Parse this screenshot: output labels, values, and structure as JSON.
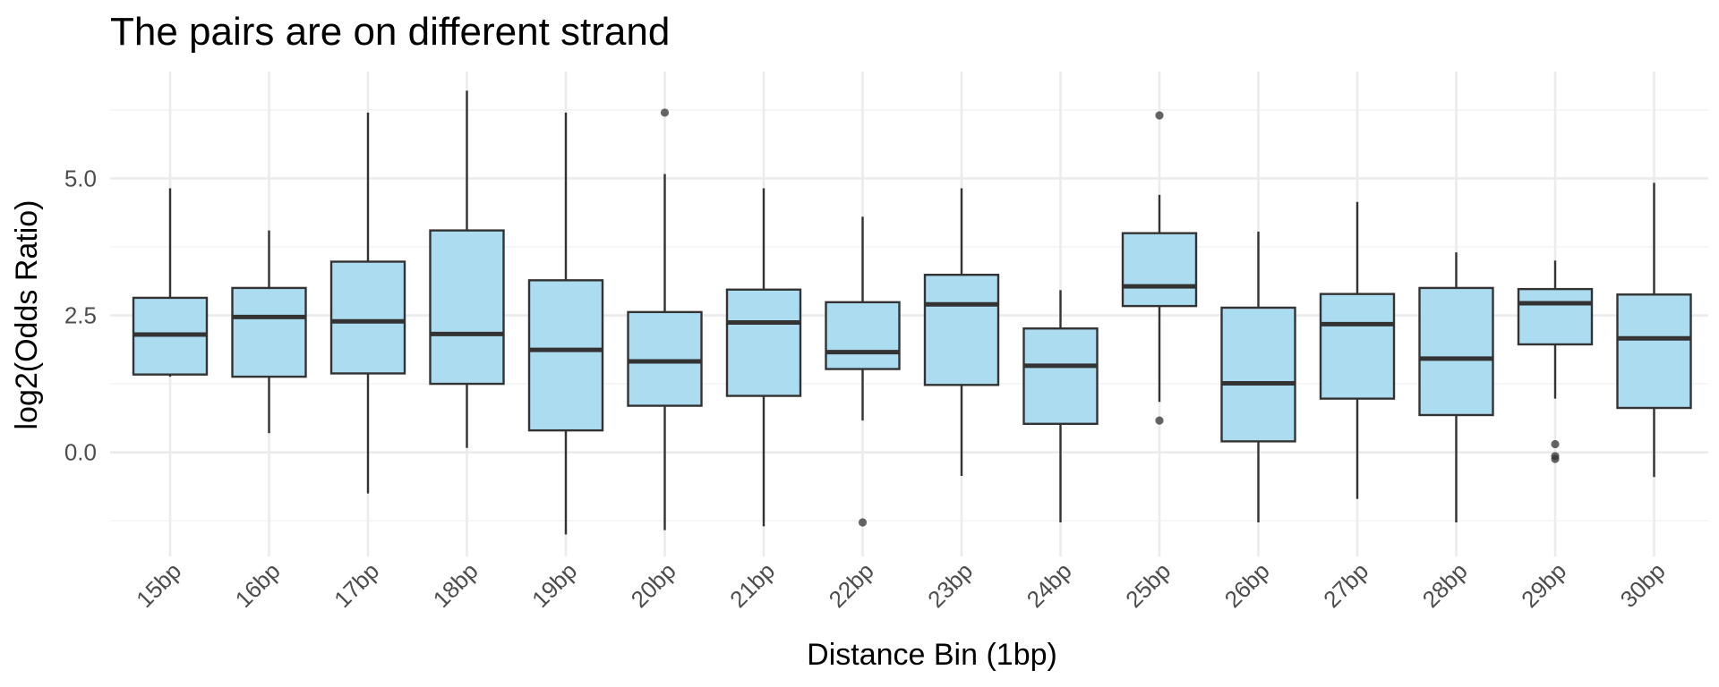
{
  "chart_data": {
    "type": "boxplot",
    "title": "The pairs are on different strand",
    "xlabel": "Distance Bin (1bp)",
    "ylabel": "log2(Odds Ratio)",
    "ylim": [
      -1.9,
      6.95
    ],
    "yticks": [
      0.0,
      2.5,
      5.0
    ],
    "ytick_labels": [
      "0.0",
      "2.5",
      "5.0"
    ],
    "grid": true,
    "box_color": "#abdcf0",
    "line_color": "#333333",
    "categories": [
      "15bp",
      "16bp",
      "17bp",
      "18bp",
      "19bp",
      "20bp",
      "21bp",
      "22bp",
      "23bp",
      "24bp",
      "25bp",
      "26bp",
      "27bp",
      "28bp",
      "29bp",
      "30bp"
    ],
    "boxes": [
      {
        "category": "15bp",
        "whisker_low": 1.38,
        "q1": 1.42,
        "median": 2.15,
        "q3": 2.82,
        "whisker_high": 4.82,
        "outliers": []
      },
      {
        "category": "16bp",
        "whisker_low": 0.35,
        "q1": 1.38,
        "median": 2.47,
        "q3": 3.0,
        "whisker_high": 4.05,
        "outliers": []
      },
      {
        "category": "17bp",
        "whisker_low": -0.75,
        "q1": 1.44,
        "median": 2.39,
        "q3": 3.48,
        "whisker_high": 6.2,
        "outliers": []
      },
      {
        "category": "18bp",
        "whisker_low": 0.08,
        "q1": 1.25,
        "median": 2.16,
        "q3": 4.05,
        "whisker_high": 6.6,
        "outliers": []
      },
      {
        "category": "19bp",
        "whisker_low": -1.5,
        "q1": 0.4,
        "median": 1.87,
        "q3": 3.14,
        "whisker_high": 6.2,
        "outliers": []
      },
      {
        "category": "20bp",
        "whisker_low": -1.42,
        "q1": 0.85,
        "median": 1.66,
        "q3": 2.56,
        "whisker_high": 5.08,
        "outliers": [
          6.2
        ]
      },
      {
        "category": "21bp",
        "whisker_low": -1.35,
        "q1": 1.03,
        "median": 2.37,
        "q3": 2.97,
        "whisker_high": 4.82,
        "outliers": []
      },
      {
        "category": "22bp",
        "whisker_low": 0.58,
        "q1": 1.52,
        "median": 1.83,
        "q3": 2.74,
        "whisker_high": 4.3,
        "outliers": [
          -1.28
        ]
      },
      {
        "category": "23bp",
        "whisker_low": -0.43,
        "q1": 1.23,
        "median": 2.7,
        "q3": 3.24,
        "whisker_high": 4.82,
        "outliers": []
      },
      {
        "category": "24bp",
        "whisker_low": -1.28,
        "q1": 0.52,
        "median": 1.58,
        "q3": 2.26,
        "whisker_high": 2.96,
        "outliers": []
      },
      {
        "category": "25bp",
        "whisker_low": 0.92,
        "q1": 2.67,
        "median": 3.03,
        "q3": 4.0,
        "whisker_high": 4.7,
        "outliers": [
          6.15,
          0.58
        ]
      },
      {
        "category": "26bp",
        "whisker_low": -1.28,
        "q1": 0.2,
        "median": 1.26,
        "q3": 2.64,
        "whisker_high": 4.03,
        "outliers": []
      },
      {
        "category": "27bp",
        "whisker_low": -0.85,
        "q1": 0.98,
        "median": 2.34,
        "q3": 2.89,
        "whisker_high": 4.57,
        "outliers": []
      },
      {
        "category": "28bp",
        "whisker_low": -1.28,
        "q1": 0.68,
        "median": 1.71,
        "q3": 3.0,
        "whisker_high": 3.65,
        "outliers": []
      },
      {
        "category": "29bp",
        "whisker_low": 0.98,
        "q1": 1.97,
        "median": 2.72,
        "q3": 2.98,
        "whisker_high": 3.5,
        "outliers": [
          0.15,
          -0.07,
          -0.12
        ]
      },
      {
        "category": "30bp",
        "whisker_low": -0.45,
        "q1": 0.81,
        "median": 2.08,
        "q3": 2.88,
        "whisker_high": 4.92,
        "outliers": []
      }
    ]
  }
}
